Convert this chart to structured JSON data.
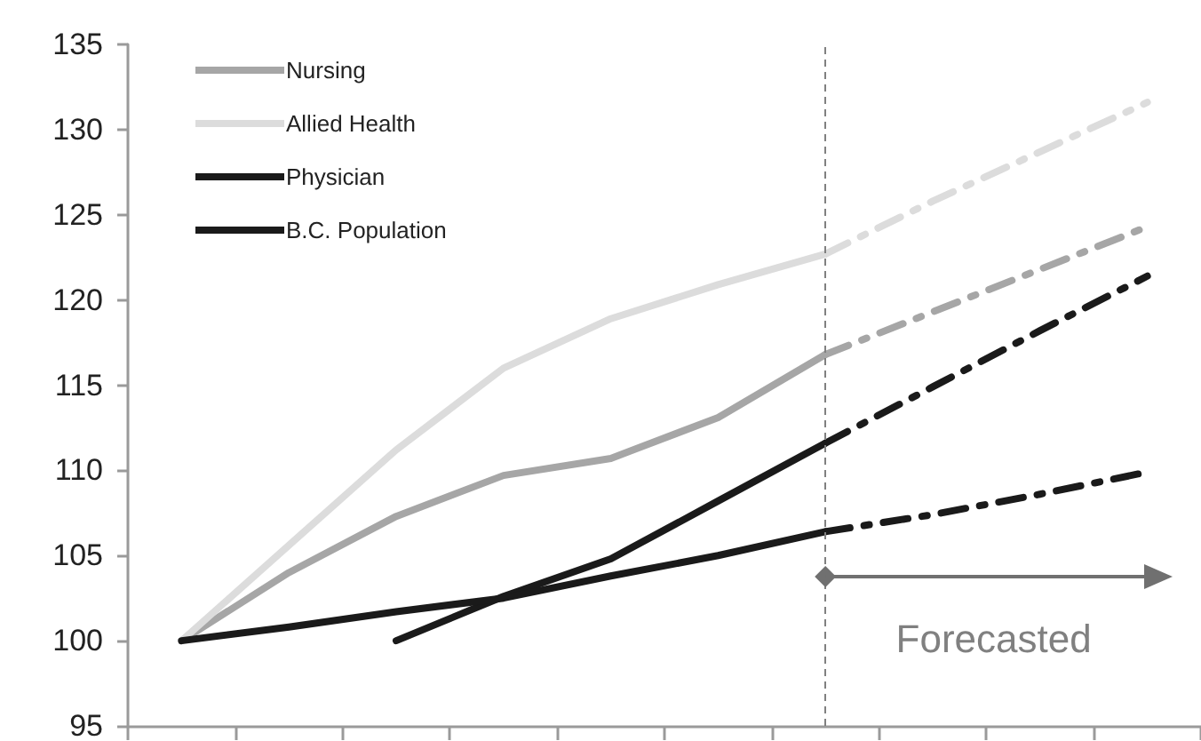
{
  "chart_data": {
    "type": "line",
    "categories": [
      null,
      null,
      null,
      null,
      null,
      null,
      null,
      null,
      null,
      null
    ],
    "ylim": [
      95,
      135
    ],
    "yticks": [
      95,
      100,
      105,
      110,
      115,
      120,
      125,
      130,
      135
    ],
    "tick_labels": "y",
    "grid": false,
    "legend": "top left",
    "marker": "none",
    "series": [
      {
        "name": "Nursing",
        "color": "#a6a6a6",
        "line_style": "solid",
        "values": [
          100,
          104,
          107.3,
          109.7,
          110.7,
          113.1,
          116.8,
          null,
          null,
          null
        ]
      },
      {
        "name": "Allied Health",
        "color": "#dcdcdc",
        "line_style": "solid",
        "values": [
          100,
          105.6,
          111.2,
          116,
          118.9,
          120.9,
          122.7,
          null,
          null,
          null
        ]
      },
      {
        "name": "Physician",
        "color": "#1a1a1a",
        "line_style": "solid",
        "values": [
          null,
          null,
          100,
          102.6,
          104.8,
          108.2,
          111.6,
          null,
          null,
          null
        ]
      },
      {
        "name": "B.C. Population",
        "color": "#1a1a1a",
        "line_style": "solid",
        "values": [
          100,
          100.8,
          101.7,
          102.5,
          103.8,
          105,
          106.4,
          null,
          null,
          null
        ]
      },
      {
        "color": "#a6a6a6",
        "line_style": "dashed",
        "values": [
          null,
          null,
          null,
          null,
          null,
          null,
          116.8,
          119.3,
          121.8,
          124.3
        ]
      },
      {
        "color": "#dcdcdc",
        "line_style": "dashed",
        "values": [
          null,
          null,
          null,
          null,
          null,
          null,
          122.7,
          125.8,
          128.7,
          131.6
        ]
      },
      {
        "color": "#1a1a1a",
        "line_style": "dashed",
        "values": [
          null,
          null,
          null,
          null,
          null,
          null,
          111.6,
          114.9,
          118.2,
          121.4
        ]
      },
      {
        "color": "#1a1a1a",
        "line_style": "dashed",
        "values": [
          null,
          null,
          null,
          null,
          null,
          null,
          106.4,
          107.4,
          108.6,
          109.9
        ]
      }
    ],
    "ref_lines": [
      {
        "axis": "x",
        "value": null,
        "color": "#808080",
        "line_style": "dashed"
      }
    ],
    "annotations": [
      "Forecasted"
    ]
  }
}
